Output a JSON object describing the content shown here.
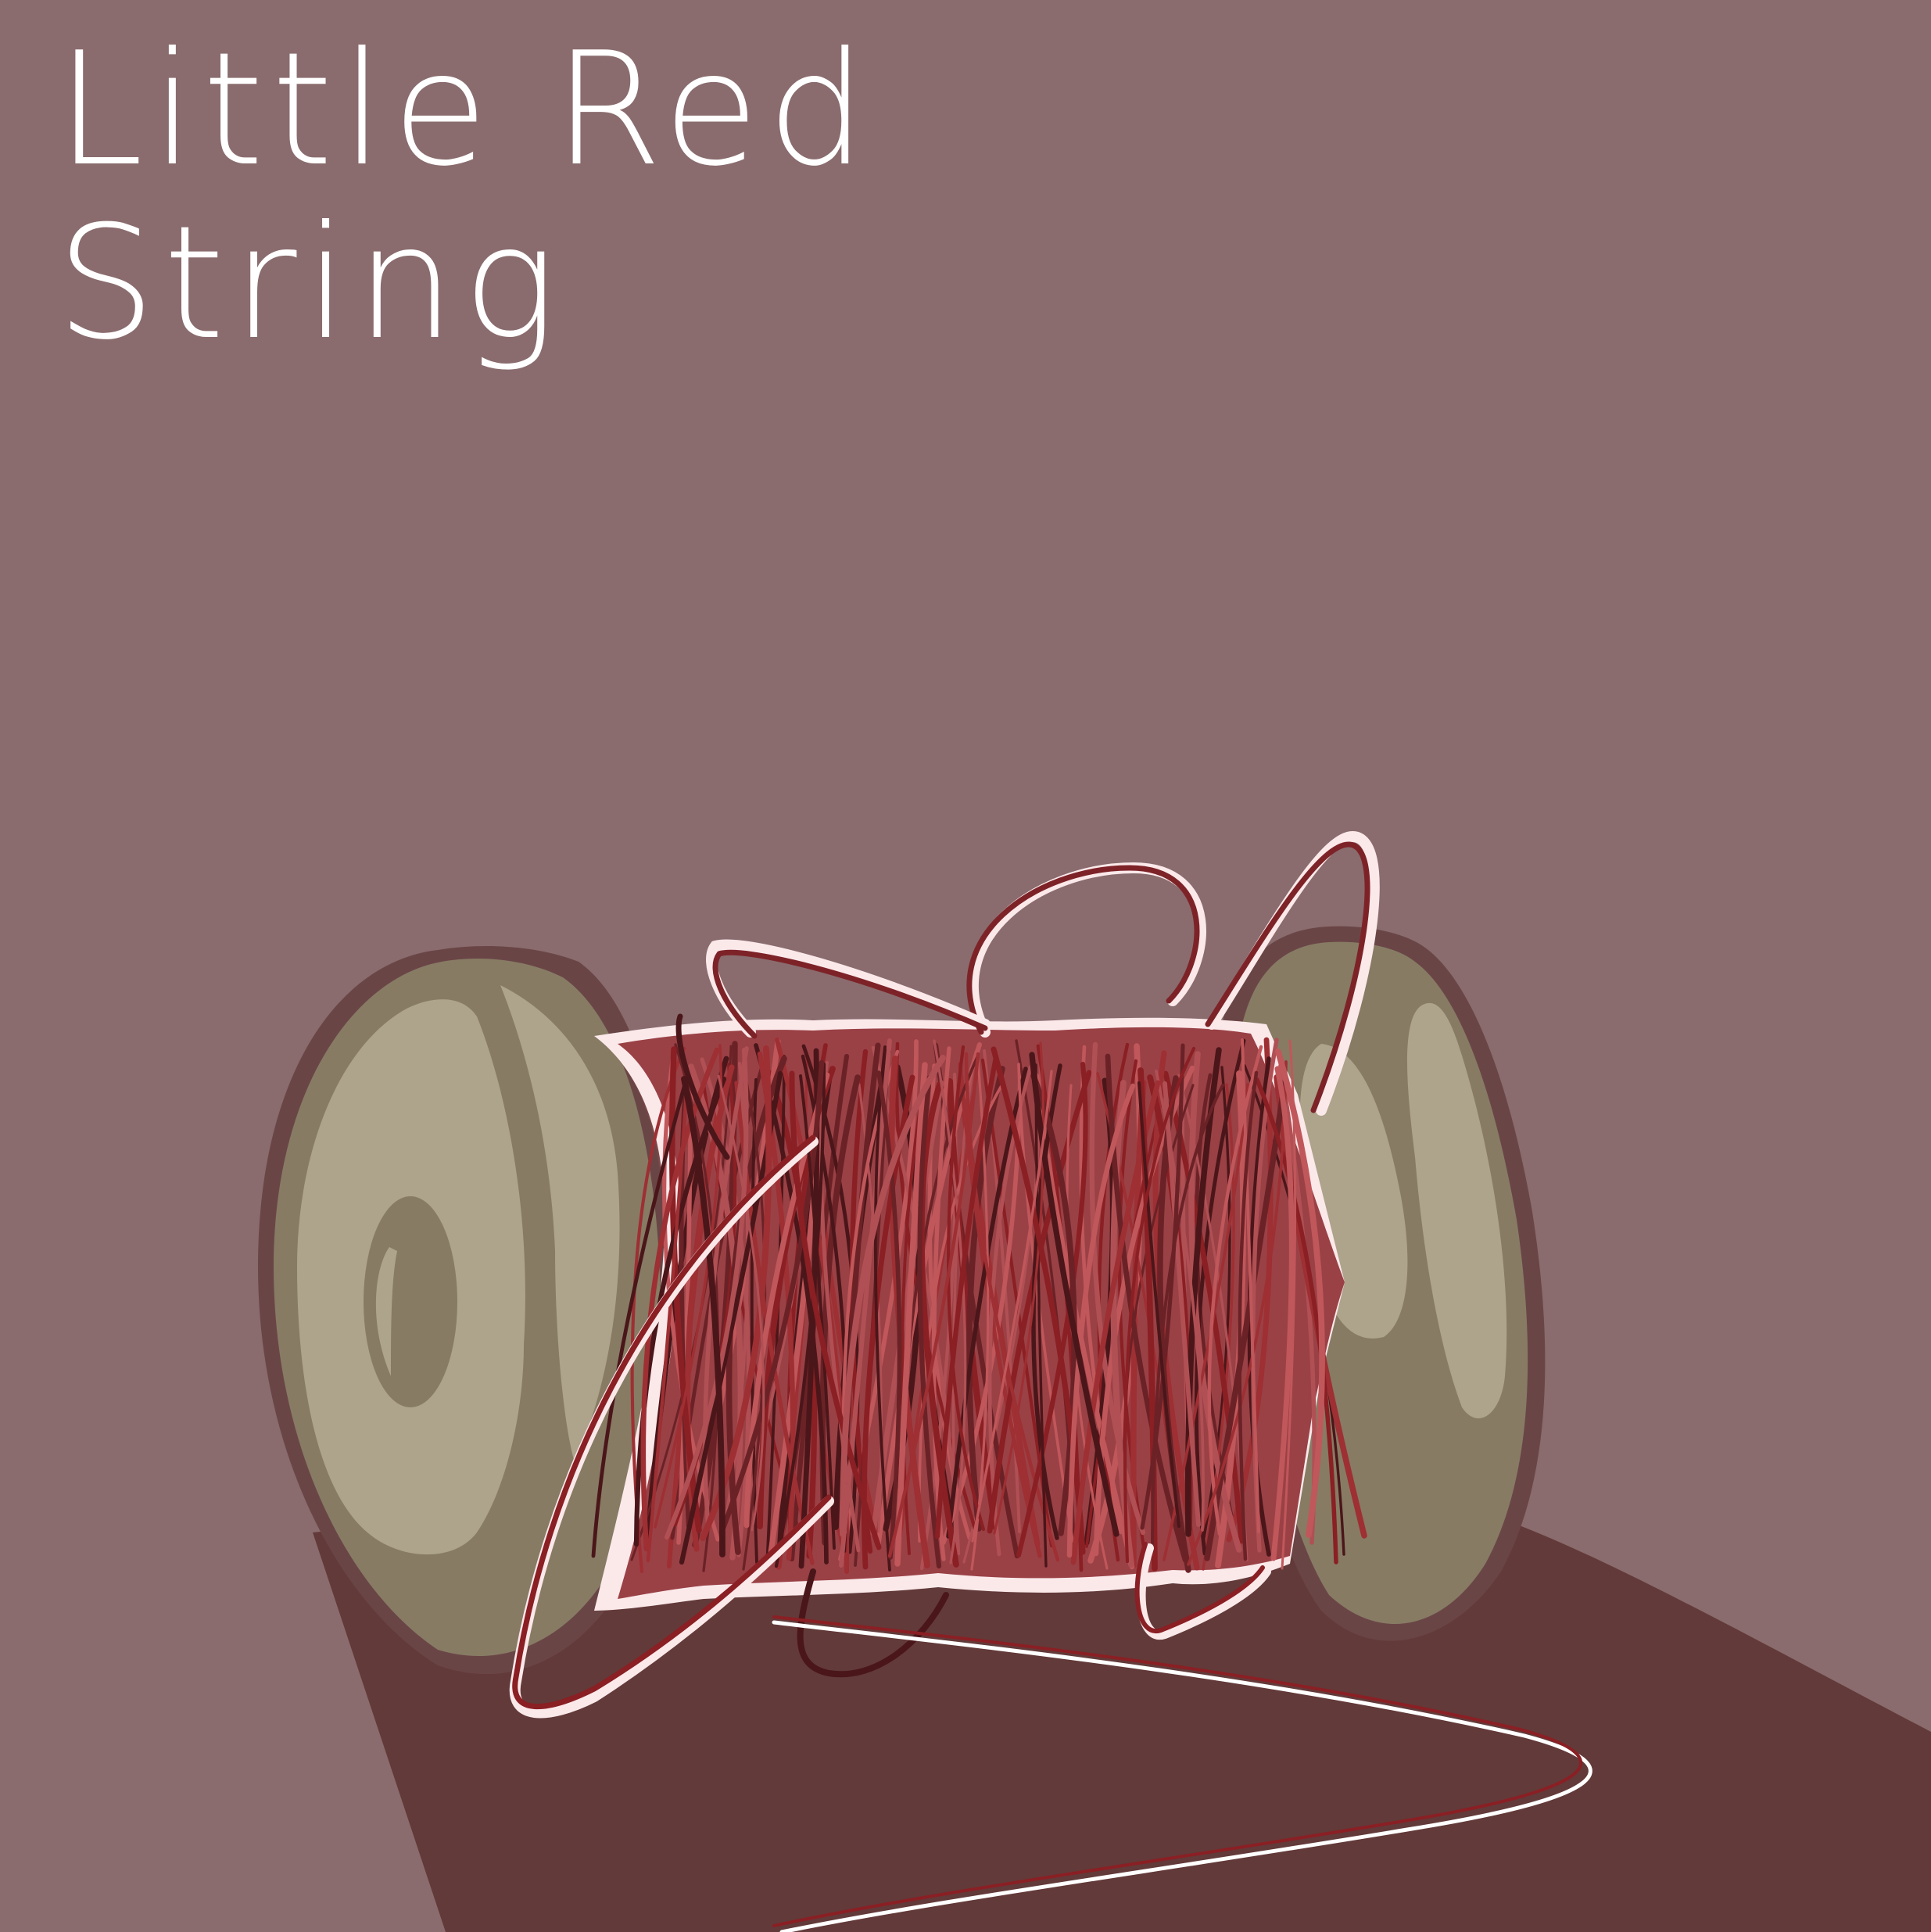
{
  "title": {
    "line1": "Little Red",
    "line2": "String"
  },
  "colors": {
    "background": "#8a6c6e",
    "floor_shadow": "#623a39",
    "spool_wood": "#877b64",
    "spool_highlight": "#aea38b",
    "spool_outline": "#6a4546",
    "thread_red": "#9e2f33",
    "thread_dark": "#4a1619",
    "thread_light": "#b05055",
    "thread_highlight": "#fbe9ea"
  }
}
